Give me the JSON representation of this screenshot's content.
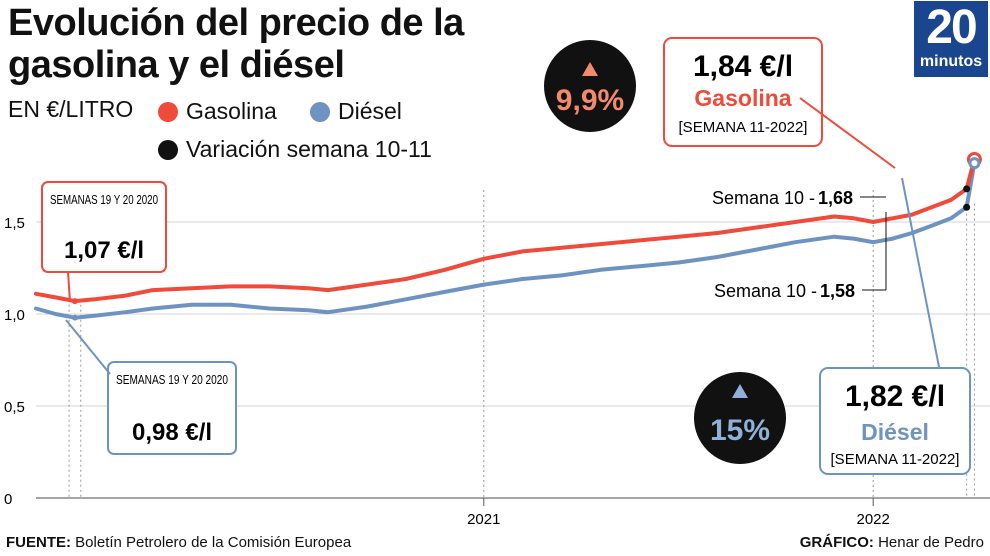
{
  "brand": {
    "number": "20",
    "word": "minutos",
    "color": "#1a4690"
  },
  "colors": {
    "gasolina": "#f04a3a",
    "diesel": "#6f93c0",
    "variacion": "#111111",
    "grid": "#d6d6d6"
  },
  "footer": {
    "source_label": "FUENTE:",
    "source_text": " Boletín Petrolero de la Comisión Europea",
    "credit_label": "GRÁFICO:",
    "credit_text": " Henar de Pedro"
  },
  "chart_data": {
    "type": "line",
    "title": "Evolución del precio de la gasolina y el diésel",
    "unit": "EN €/LITRO",
    "legend": [
      "Gasolina",
      "Diésel",
      "Variación semana 10-11"
    ],
    "ylim": [
      0,
      2.0
    ],
    "yticks": [
      0,
      0.5,
      1.0,
      1.5
    ],
    "ytick_labels": [
      "0",
      "0,5",
      "1,0",
      "1,5"
    ],
    "xlim": [
      2019.85,
      2022.3
    ],
    "xticks": [
      2021,
      2022
    ],
    "xtick_labels": [
      "2021",
      "2022"
    ],
    "grid": true,
    "series": [
      {
        "name": "Gasolina",
        "x": [
          2019.85,
          2019.9,
          2019.95,
          2020.0,
          2020.08,
          2020.15,
          2020.25,
          2020.35,
          2020.45,
          2020.55,
          2020.6,
          2020.7,
          2020.8,
          2020.9,
          2021.0,
          2021.1,
          2021.2,
          2021.3,
          2021.4,
          2021.5,
          2021.6,
          2021.7,
          2021.8,
          2021.9,
          2021.95,
          2022.0,
          2022.05,
          2022.1,
          2022.15,
          2022.2,
          2022.24,
          2022.26
        ],
        "y": [
          1.11,
          1.09,
          1.07,
          1.08,
          1.1,
          1.13,
          1.14,
          1.15,
          1.15,
          1.14,
          1.13,
          1.16,
          1.19,
          1.24,
          1.3,
          1.34,
          1.36,
          1.38,
          1.4,
          1.42,
          1.44,
          1.47,
          1.5,
          1.53,
          1.52,
          1.5,
          1.52,
          1.54,
          1.58,
          1.62,
          1.68,
          1.84
        ]
      },
      {
        "name": "Diésel",
        "x": [
          2019.85,
          2019.9,
          2019.95,
          2020.0,
          2020.08,
          2020.15,
          2020.25,
          2020.35,
          2020.45,
          2020.55,
          2020.6,
          2020.7,
          2020.8,
          2020.9,
          2021.0,
          2021.1,
          2021.2,
          2021.3,
          2021.4,
          2021.5,
          2021.6,
          2021.7,
          2021.8,
          2021.9,
          2021.95,
          2022.0,
          2022.05,
          2022.1,
          2022.15,
          2022.2,
          2022.24,
          2022.26
        ],
        "y": [
          1.03,
          1.0,
          0.98,
          0.99,
          1.01,
          1.03,
          1.05,
          1.05,
          1.03,
          1.02,
          1.01,
          1.04,
          1.08,
          1.12,
          1.16,
          1.19,
          1.21,
          1.24,
          1.26,
          1.28,
          1.31,
          1.35,
          1.39,
          1.42,
          1.41,
          1.39,
          1.41,
          1.44,
          1.48,
          1.52,
          1.58,
          1.82
        ]
      }
    ],
    "annotations": {
      "gas_start": {
        "title": "SEMANAS 19 Y 20 2020",
        "value": "1,07 €/l"
      },
      "die_start": {
        "title": "SEMANAS 19 Y 20 2020",
        "value": "0,98 €/l"
      },
      "gas_end": {
        "value": "1,84 €/l",
        "name": "Gasolina",
        "week": "[SEMANA 11-2022]"
      },
      "die_end": {
        "value": "1,82 €/l",
        "name": "Diésel",
        "week": "[SEMANA 11-2022]"
      },
      "gas_w10": {
        "label": "Semana 10 - ",
        "value": "1,68"
      },
      "die_w10": {
        "label": "Semana 10 - ",
        "value": "1,58"
      },
      "gas_var": "9,9%",
      "die_var": "15%"
    }
  }
}
